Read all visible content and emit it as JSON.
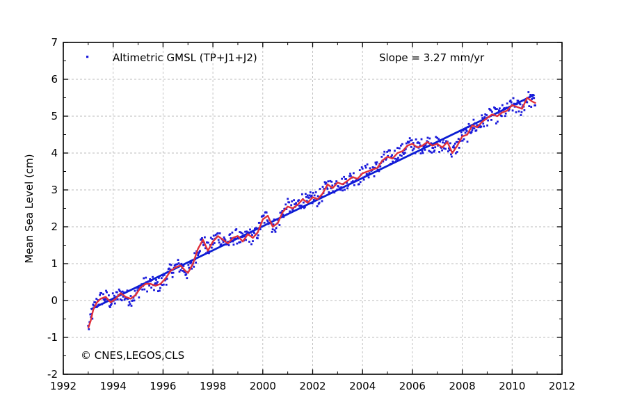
{
  "chart_data": {
    "type": "scatter",
    "title": "",
    "xlabel": "",
    "ylabel": "Mean Sea Level (cm)",
    "xlim": [
      1992,
      2012
    ],
    "ylim": [
      -2,
      7
    ],
    "xticks": [
      "1992",
      "1994",
      "1996",
      "1998",
      "2000",
      "2002",
      "2004",
      "2006",
      "2008",
      "2010",
      "2012"
    ],
    "yticks": [
      "-2",
      "-1",
      "0",
      "1",
      "2",
      "3",
      "4",
      "5",
      "6",
      "7"
    ],
    "grid": true,
    "legend": {
      "placement": "top-left",
      "label": "Altimetric GMSL (TP+J1+J2)"
    },
    "slope_text": "Slope = 3.27 mm/yr",
    "copyright": "© CNES,LEGOS,CLS",
    "colors": {
      "points": "#1a1adb",
      "trend": "#0a1ed2",
      "smooth": "#e0303a",
      "grid": "#bbbbbb"
    },
    "series": [
      {
        "kind": "trend",
        "x": [
          1993.1,
          2010.9
        ],
        "values": [
          -0.24,
          5.58
        ]
      },
      {
        "kind": "smoothed",
        "x": [
          1993.0,
          1993.1,
          1993.2,
          1993.35,
          1993.5,
          1993.7,
          1993.9,
          1994.1,
          1994.3,
          1994.5,
          1994.7,
          1994.9,
          1995.1,
          1995.3,
          1995.5,
          1995.7,
          1995.9,
          1996.1,
          1996.3,
          1996.5,
          1996.7,
          1996.9,
          1997.0,
          1997.2,
          1997.4,
          1997.6,
          1997.8,
          1998.0,
          1998.2,
          1998.4,
          1998.6,
          1998.8,
          1999.0,
          1999.2,
          1999.4,
          1999.6,
          1999.8,
          2000.0,
          2000.2,
          2000.4,
          2000.6,
          2000.8,
          2001.0,
          2001.2,
          2001.4,
          2001.6,
          2001.8,
          2002.0,
          2002.2,
          2002.4,
          2002.6,
          2002.8,
          2003.0,
          2003.2,
          2003.4,
          2003.6,
          2003.8,
          2004.0,
          2004.2,
          2004.4,
          2004.6,
          2004.8,
          2005.0,
          2005.2,
          2005.4,
          2005.6,
          2005.8,
          2006.0,
          2006.2,
          2006.4,
          2006.6,
          2006.8,
          2007.0,
          2007.2,
          2007.4,
          2007.6,
          2007.8,
          2008.0,
          2008.2,
          2008.4,
          2008.6,
          2008.8,
          2009.0,
          2009.2,
          2009.4,
          2009.6,
          2009.8,
          2010.0,
          2010.2,
          2010.4,
          2010.6,
          2010.8,
          2010.95
        ],
        "values": [
          -0.75,
          -0.55,
          -0.25,
          -0.05,
          0.05,
          0.1,
          -0.05,
          0.05,
          0.2,
          0.1,
          0.05,
          0.15,
          0.35,
          0.45,
          0.45,
          0.4,
          0.45,
          0.6,
          0.8,
          0.9,
          0.95,
          0.8,
          0.75,
          1.0,
          1.4,
          1.65,
          1.35,
          1.6,
          1.75,
          1.65,
          1.55,
          1.7,
          1.75,
          1.6,
          1.8,
          1.7,
          1.85,
          2.2,
          2.3,
          2.0,
          2.1,
          2.4,
          2.55,
          2.5,
          2.6,
          2.75,
          2.65,
          2.8,
          2.75,
          2.9,
          3.15,
          3.05,
          3.2,
          3.15,
          3.25,
          3.35,
          3.3,
          3.45,
          3.5,
          3.55,
          3.6,
          3.8,
          3.9,
          3.85,
          4.0,
          4.05,
          4.2,
          4.25,
          4.15,
          4.2,
          4.3,
          4.2,
          4.25,
          4.15,
          4.3,
          4.0,
          4.2,
          4.45,
          4.5,
          4.75,
          4.7,
          4.85,
          4.95,
          5.05,
          5.0,
          5.1,
          5.15,
          5.3,
          5.25,
          5.2,
          5.5,
          5.4,
          5.35
        ]
      }
    ]
  }
}
